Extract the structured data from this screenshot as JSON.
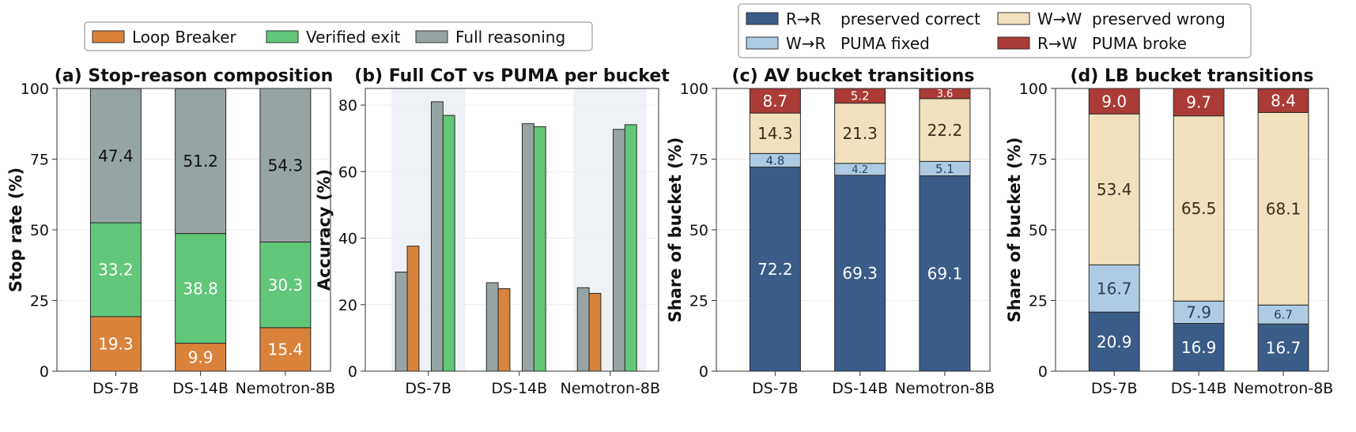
{
  "legends": {
    "stop_reason": {
      "items": [
        {
          "label": "Loop Breaker",
          "color": "#d9823b"
        },
        {
          "label": "Verified exit",
          "color": "#62c778"
        },
        {
          "label": "Full reasoning",
          "color": "#97a4a4"
        }
      ]
    },
    "transitions": {
      "items": [
        {
          "code": "R→R",
          "label": "preserved correct",
          "color": "#3a5c88"
        },
        {
          "code": "W→W",
          "label": "preserved wrong",
          "color": "#f1e2bd"
        },
        {
          "code": "W→R",
          "label": "PUMA fixed",
          "color": "#aecbe3"
        },
        {
          "code": "R→W",
          "label": "PUMA broke",
          "color": "#ab3b35"
        }
      ]
    }
  },
  "chart_data": [
    {
      "type": "bar",
      "stacked": true,
      "title": "(a) Stop-reason composition",
      "ylabel": "Stop rate (%)",
      "ylim": [
        0,
        100
      ],
      "yticks": [
        0,
        25,
        50,
        75,
        100
      ],
      "categories": [
        "DS-7B",
        "DS-14B",
        "Nemotron-8B"
      ],
      "series": [
        {
          "name": "Loop Breaker",
          "color": "#d9823b",
          "values": [
            19.3,
            9.9,
            15.4
          ],
          "value_labels": [
            "19.3",
            "9.9",
            "15.4"
          ],
          "label_color": "#ffffff"
        },
        {
          "name": "Verified exit",
          "color": "#62c778",
          "values": [
            33.2,
            38.8,
            30.3
          ],
          "value_labels": [
            "33.2",
            "38.8",
            "30.3"
          ],
          "label_color": "#ffffff"
        },
        {
          "name": "Full reasoning",
          "color": "#97a4a4",
          "values": [
            47.4,
            51.2,
            54.3
          ],
          "value_labels": [
            "47.4",
            "51.2",
            "54.3"
          ],
          "label_color": "#111111"
        }
      ]
    },
    {
      "type": "bar",
      "grouped": true,
      "title": "(b) Full CoT vs PUMA per bucket",
      "ylabel": "Accuracy (%)",
      "ylim": [
        0,
        85
      ],
      "yticks": [
        0,
        20,
        40,
        60,
        80
      ],
      "categories": [
        "DS-7B",
        "DS-14B",
        "Nemotron-8B"
      ],
      "shaded_groups": [
        0,
        2
      ],
      "groups": [
        {
          "category": "DS-7B",
          "bars": [
            {
              "series": "Full reasoning",
              "value": 29.8,
              "color": "#97a4a4"
            },
            {
              "series": "Loop Breaker",
              "value": 37.6,
              "color": "#d9823b"
            },
            {
              "series": "Full reasoning",
              "value": 81.0,
              "color": "#97a4a4"
            },
            {
              "series": "Verified exit",
              "value": 76.9,
              "color": "#62c778"
            }
          ]
        },
        {
          "category": "DS-14B",
          "bars": [
            {
              "series": "Full reasoning",
              "value": 26.6,
              "color": "#97a4a4"
            },
            {
              "series": "Loop Breaker",
              "value": 24.8,
              "color": "#d9823b"
            },
            {
              "series": "Full reasoning",
              "value": 74.4,
              "color": "#97a4a4"
            },
            {
              "series": "Verified exit",
              "value": 73.5,
              "color": "#62c778"
            }
          ]
        },
        {
          "category": "Nemotron-8B",
          "bars": [
            {
              "series": "Full reasoning",
              "value": 25.1,
              "color": "#97a4a4"
            },
            {
              "series": "Loop Breaker",
              "value": 23.4,
              "color": "#d9823b"
            },
            {
              "series": "Full reasoning",
              "value": 72.7,
              "color": "#97a4a4"
            },
            {
              "series": "Verified exit",
              "value": 74.1,
              "color": "#62c778"
            }
          ]
        }
      ]
    },
    {
      "type": "bar",
      "stacked": true,
      "title": "(c) AV bucket transitions",
      "ylabel": "Share of bucket (%)",
      "ylim": [
        0,
        100
      ],
      "yticks": [
        0,
        25,
        50,
        75,
        100
      ],
      "categories": [
        "DS-7B",
        "DS-14B",
        "Nemotron-8B"
      ],
      "series": [
        {
          "name": "R→R preserved correct",
          "color": "#3a5c88",
          "values": [
            72.2,
            69.3,
            69.1
          ],
          "value_labels": [
            "72.2",
            "69.3",
            "69.1"
          ],
          "label_color": "#ffffff"
        },
        {
          "name": "W→R PUMA fixed",
          "color": "#aecbe3",
          "values": [
            4.8,
            4.2,
            5.1
          ],
          "value_labels": [
            "4.8",
            "4.2",
            "5.1"
          ],
          "label_color": "#2b3f5c"
        },
        {
          "name": "W→W preserved wrong",
          "color": "#f1e2bd",
          "values": [
            14.3,
            21.3,
            22.2
          ],
          "value_labels": [
            "14.3",
            "21.3",
            "22.2"
          ],
          "label_color": "#3a2e1a"
        },
        {
          "name": "R→W PUMA broke",
          "color": "#ab3b35",
          "values": [
            8.7,
            5.2,
            3.6
          ],
          "value_labels": [
            "8.7",
            "5.2",
            "3.6"
          ],
          "label_color": "#ffffff"
        }
      ]
    },
    {
      "type": "bar",
      "stacked": true,
      "title": "(d) LB bucket transitions",
      "ylabel": "Share of bucket (%)",
      "ylim": [
        0,
        100
      ],
      "yticks": [
        0,
        25,
        50,
        75,
        100
      ],
      "categories": [
        "DS-7B",
        "DS-14B",
        "Nemotron-8B"
      ],
      "series": [
        {
          "name": "R→R preserved correct",
          "color": "#3a5c88",
          "values": [
            20.9,
            16.9,
            16.7
          ],
          "value_labels": [
            "20.9",
            "16.9",
            "16.7"
          ],
          "label_color": "#ffffff"
        },
        {
          "name": "W→R PUMA fixed",
          "color": "#aecbe3",
          "values": [
            16.7,
            7.9,
            6.7
          ],
          "value_labels": [
            "16.7",
            "7.9",
            "6.7"
          ],
          "label_color": "#2b3f5c"
        },
        {
          "name": "W→W preserved wrong",
          "color": "#f1e2bd",
          "values": [
            53.4,
            65.5,
            68.1
          ],
          "value_labels": [
            "53.4",
            "65.5",
            "68.1"
          ],
          "label_color": "#3a2e1a"
        },
        {
          "name": "R→W PUMA broke",
          "color": "#ab3b35",
          "values": [
            9.0,
            9.7,
            8.4
          ],
          "value_labels": [
            "9.0",
            "9.7",
            "8.4"
          ],
          "label_color": "#ffffff"
        }
      ]
    }
  ]
}
